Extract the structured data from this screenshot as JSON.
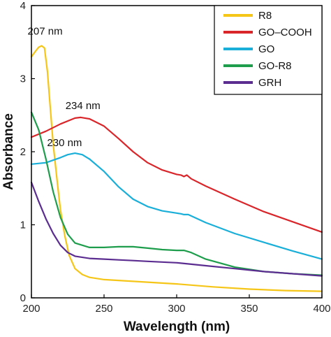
{
  "chart_data": {
    "type": "line",
    "xlabel": "Wavelength (nm)",
    "ylabel": "Absorbance",
    "xlim": [
      200,
      400
    ],
    "ylim": [
      0,
      4
    ],
    "xticks": [
      "200",
      "250",
      "300",
      "350",
      "400"
    ],
    "yticks": [
      "0",
      "1",
      "2",
      "3",
      "4"
    ],
    "legend_position": "top-right",
    "annotations": [
      {
        "text": "207 nm",
        "x": 207,
        "y": 3.45
      },
      {
        "text": "234 nm",
        "x": 234,
        "y": 2.47
      },
      {
        "text": "230 nm",
        "x": 230,
        "y": 1.98
      }
    ],
    "series": [
      {
        "name": "R8",
        "color": "#f5c518",
        "x": [
          200,
          203,
          205,
          207,
          209,
          211,
          213,
          215,
          218,
          220,
          223,
          226,
          230,
          235,
          240,
          250,
          275,
          300,
          325,
          350,
          375,
          400
        ],
        "y": [
          3.3,
          3.38,
          3.43,
          3.45,
          3.42,
          3.1,
          2.6,
          2.1,
          1.55,
          1.2,
          0.85,
          0.58,
          0.4,
          0.32,
          0.28,
          0.25,
          0.22,
          0.19,
          0.15,
          0.12,
          0.1,
          0.09
        ]
      },
      {
        "name": "GO–COOH",
        "color": "#d9262b",
        "x": [
          200,
          210,
          220,
          230,
          234,
          240,
          250,
          260,
          270,
          280,
          290,
          300,
          303,
          305,
          307,
          310,
          320,
          340,
          360,
          380,
          400
        ],
        "y": [
          2.2,
          2.28,
          2.38,
          2.46,
          2.47,
          2.45,
          2.35,
          2.18,
          2.0,
          1.85,
          1.75,
          1.69,
          1.68,
          1.66,
          1.68,
          1.63,
          1.53,
          1.35,
          1.18,
          1.04,
          0.9
        ]
      },
      {
        "name": "GO",
        "color": "#1aafd8",
        "x": [
          200,
          210,
          220,
          225,
          230,
          235,
          240,
          250,
          260,
          270,
          280,
          290,
          300,
          303,
          305,
          308,
          320,
          340,
          360,
          380,
          400
        ],
        "y": [
          1.83,
          1.85,
          1.92,
          1.96,
          1.98,
          1.96,
          1.9,
          1.73,
          1.52,
          1.35,
          1.25,
          1.19,
          1.16,
          1.15,
          1.14,
          1.14,
          1.03,
          0.88,
          0.76,
          0.64,
          0.53
        ]
      },
      {
        "name": "GO-R8",
        "color": "#1e9e4c",
        "x": [
          200,
          205,
          210,
          215,
          220,
          225,
          230,
          240,
          250,
          260,
          270,
          280,
          290,
          300,
          305,
          310,
          320,
          340,
          360,
          380,
          400
        ],
        "y": [
          2.54,
          2.3,
          1.9,
          1.45,
          1.1,
          0.87,
          0.75,
          0.69,
          0.69,
          0.7,
          0.7,
          0.68,
          0.66,
          0.65,
          0.65,
          0.62,
          0.53,
          0.42,
          0.36,
          0.33,
          0.31
        ]
      },
      {
        "name": "GRH",
        "color": "#5c2d91",
        "x": [
          200,
          205,
          210,
          215,
          220,
          225,
          230,
          240,
          250,
          260,
          270,
          280,
          290,
          300,
          310,
          320,
          340,
          360,
          380,
          400
        ],
        "y": [
          1.58,
          1.32,
          1.08,
          0.88,
          0.72,
          0.62,
          0.57,
          0.54,
          0.53,
          0.52,
          0.51,
          0.5,
          0.49,
          0.48,
          0.46,
          0.44,
          0.4,
          0.36,
          0.33,
          0.3
        ]
      }
    ]
  }
}
